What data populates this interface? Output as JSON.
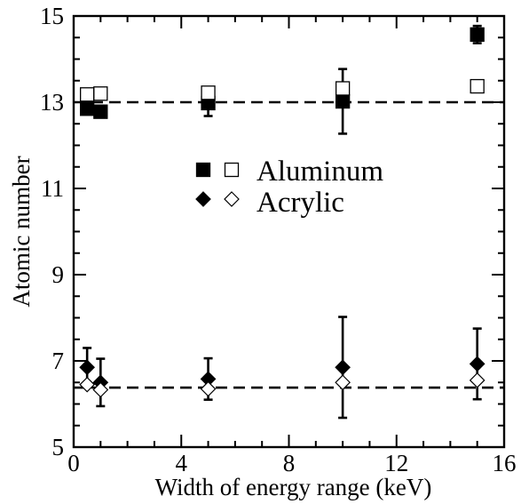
{
  "chart_data": {
    "type": "scatter",
    "xlabel": "Width of energy range (keV)",
    "ylabel": "Atomic number",
    "xlim": [
      0,
      16
    ],
    "ylim": [
      5,
      15
    ],
    "x_ticks": [
      "0",
      "4",
      "8",
      "12",
      "16"
    ],
    "y_ticks": [
      "5",
      "7",
      "9",
      "11",
      "13",
      "15"
    ],
    "grid": false,
    "legend": {
      "placement": "center",
      "entries": [
        {
          "label": "Aluminum",
          "markers": [
            "filled-square",
            "open-square"
          ]
        },
        {
          "label": "Acrylic",
          "markers": [
            "filled-diamond",
            "open-diamond"
          ]
        }
      ]
    },
    "reference_lines": [
      {
        "y": 13.0,
        "style": "dashed"
      },
      {
        "y": 6.38,
        "style": "dashed"
      }
    ],
    "series": [
      {
        "label": "Aluminum",
        "marker": "filled-square",
        "points": [
          {
            "x": 0.5,
            "y": 12.85,
            "err": 0.1
          },
          {
            "x": 1,
            "y": 12.78,
            "err": 0.1
          },
          {
            "x": 5,
            "y": 12.98,
            "err": 0.3
          },
          {
            "x": 10,
            "y": 13.02,
            "err": 0.75
          },
          {
            "x": 15,
            "y": 14.57,
            "err": 0.2
          }
        ]
      },
      {
        "label": "Aluminum",
        "marker": "open-square",
        "points": [
          {
            "x": 0.5,
            "y": 13.18
          },
          {
            "x": 1,
            "y": 13.2
          },
          {
            "x": 5,
            "y": 13.22
          },
          {
            "x": 10,
            "y": 13.32
          },
          {
            "x": 15,
            "y": 13.37
          }
        ]
      },
      {
        "label": "Acrylic",
        "marker": "filled-diamond",
        "points": [
          {
            "x": 0.5,
            "y": 6.85,
            "err": 0.45
          },
          {
            "x": 1,
            "y": 6.5,
            "err": 0.55
          },
          {
            "x": 5,
            "y": 6.58,
            "err": 0.48
          },
          {
            "x": 10,
            "y": 6.85,
            "err": 1.17
          },
          {
            "x": 15,
            "y": 6.93,
            "err": 0.82
          }
        ]
      },
      {
        "label": "Acrylic",
        "marker": "open-diamond",
        "points": [
          {
            "x": 0.5,
            "y": 6.45
          },
          {
            "x": 1,
            "y": 6.33
          },
          {
            "x": 5,
            "y": 6.35
          },
          {
            "x": 10,
            "y": 6.5
          },
          {
            "x": 15,
            "y": 6.55
          }
        ]
      }
    ]
  }
}
